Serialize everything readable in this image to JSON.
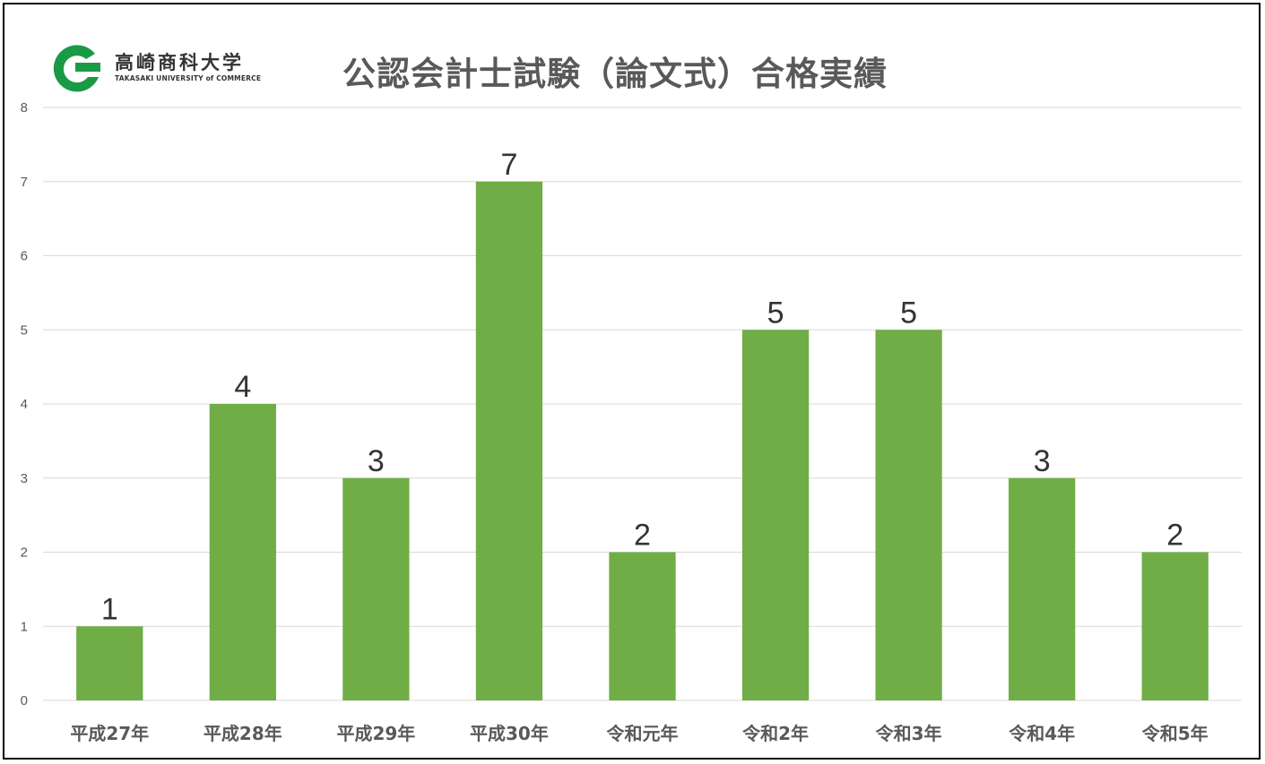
{
  "logo": {
    "name_jp": "高崎商科大学",
    "name_en": "TAKASAKI UNIVERSITY of COMMERCE",
    "color": "#1a9a46"
  },
  "chart_data": {
    "type": "bar",
    "title": "公認会計士試験（論文式）合格実績",
    "categories": [
      "平成27年",
      "平成28年",
      "平成29年",
      "平成30年",
      "令和元年",
      "令和2年",
      "令和3年",
      "令和4年",
      "令和5年"
    ],
    "values": [
      1,
      4,
      3,
      7,
      2,
      5,
      5,
      3,
      2
    ],
    "ylim": [
      0,
      8
    ],
    "yticks": [
      0,
      1,
      2,
      3,
      4,
      5,
      6,
      7,
      8
    ],
    "xlabel": "",
    "ylabel": "",
    "grid": true,
    "bar_color": "#70ad47",
    "data_labels": true
  }
}
